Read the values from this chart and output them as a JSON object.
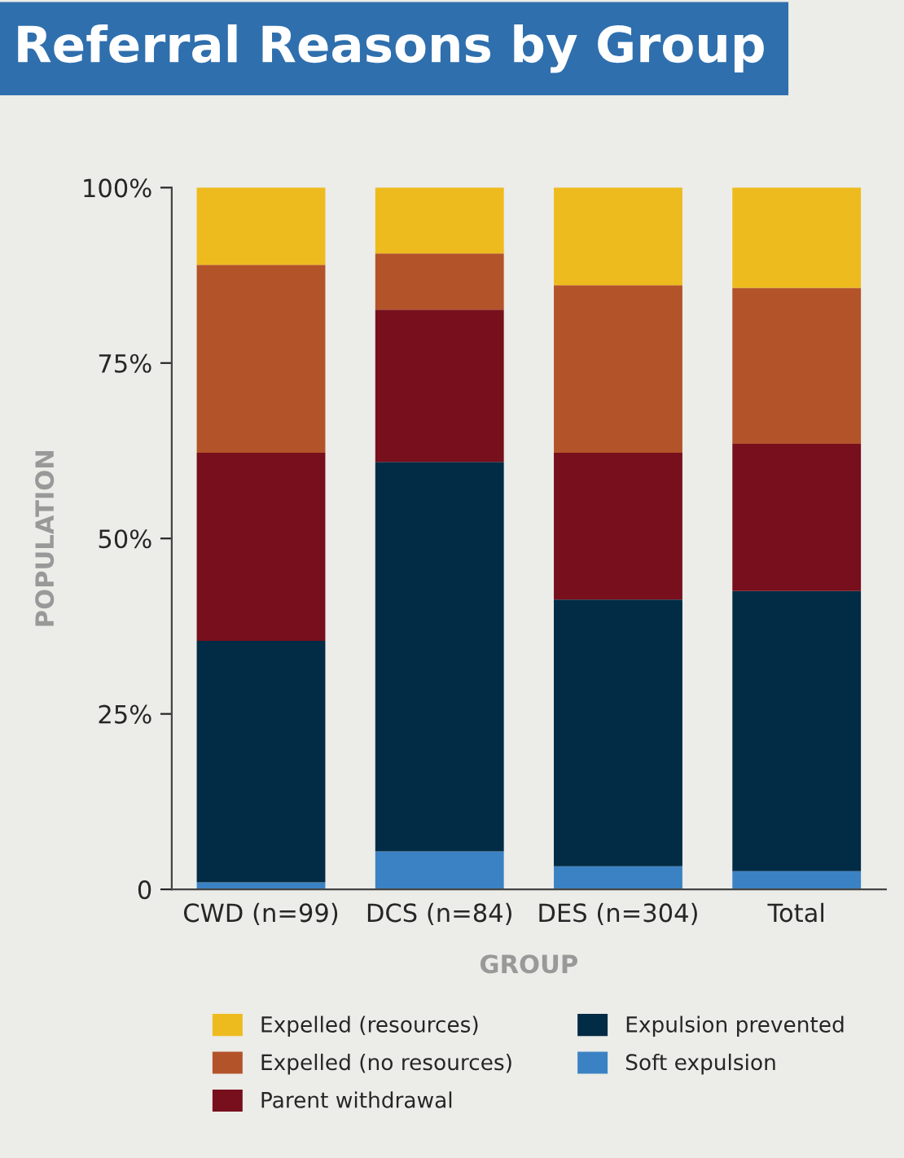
{
  "chart_data": {
    "type": "bar",
    "title": "Referral Reasons by Group",
    "xlabel": "GROUP",
    "ylabel": "POPULATION",
    "stacked": true,
    "categories": [
      "CWD (n=99)",
      "DCS (n=84)",
      "DES (n=304)",
      "Total"
    ],
    "series": [
      {
        "name": "Soft expulsion",
        "color": "#3b82c4",
        "values": [
          1.0,
          5.4,
          3.3,
          2.6
        ]
      },
      {
        "name": "Expulsion prevented",
        "color": "#022b45",
        "values": [
          34.4,
          55.5,
          38.0,
          39.9
        ]
      },
      {
        "name": "Parent withdrawal",
        "color": "#770f1d",
        "values": [
          26.8,
          21.7,
          20.9,
          21.0
        ]
      },
      {
        "name": "Expelled (no resources)",
        "color": "#b3532a",
        "values": [
          26.8,
          8.0,
          23.9,
          22.2
        ]
      },
      {
        "name": "Expelled (resources)",
        "color": "#eebb1e",
        "values": [
          11.0,
          9.4,
          13.9,
          14.3
        ]
      }
    ],
    "ylim": [
      0,
      100
    ],
    "yticks": [
      {
        "value": 0,
        "label": "0"
      },
      {
        "value": 25,
        "label": "25%"
      },
      {
        "value": 50,
        "label": "50%"
      },
      {
        "value": 75,
        "label": "75%"
      },
      {
        "value": 100,
        "label": "100%"
      }
    ],
    "grid": false,
    "legend": "bottom"
  }
}
